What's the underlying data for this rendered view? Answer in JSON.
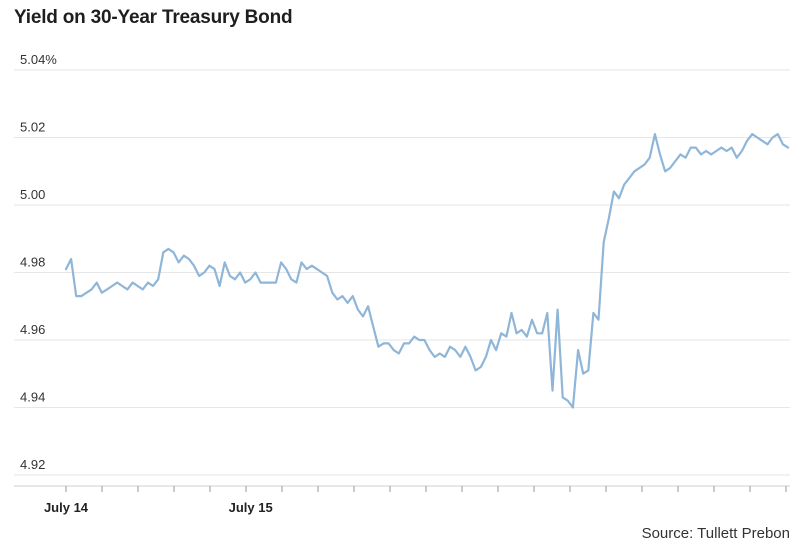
{
  "source": "Source: Tullett Prebon",
  "chart_data": {
    "type": "line",
    "title": "Yield on 30-Year Treasury Bond",
    "xlabel": "",
    "ylabel": "",
    "ylim": [
      4.92,
      5.04
    ],
    "yticks": [
      {
        "value": 5.04,
        "label": "5.04%"
      },
      {
        "value": 5.02,
        "label": "5.02"
      },
      {
        "value": 5.0,
        "label": "5.00"
      },
      {
        "value": 4.98,
        "label": "4.98"
      },
      {
        "value": 4.96,
        "label": "4.96"
      },
      {
        "value": 4.94,
        "label": "4.94"
      },
      {
        "value": 4.92,
        "label": "4.92"
      }
    ],
    "xlabels": [
      {
        "index": 0,
        "label": "July 14"
      },
      {
        "index": 6,
        "label": "July 15"
      }
    ],
    "xtick_count": 21,
    "grid": true,
    "line_color": "#8fb6d8",
    "series": [
      {
        "values": [
          4.981,
          4.984,
          4.973,
          4.973,
          4.974,
          4.975,
          4.977,
          4.974,
          4.975,
          4.976,
          4.977,
          4.976,
          4.975,
          4.977,
          4.976,
          4.975,
          4.977,
          4.976,
          4.978,
          4.986,
          4.987,
          4.986,
          4.983,
          4.985,
          4.984,
          4.982,
          4.979,
          4.98,
          4.982,
          4.981,
          4.976,
          4.983,
          4.979,
          4.978,
          4.98,
          4.977,
          4.978,
          4.98,
          4.977,
          4.977,
          4.977,
          4.977,
          4.983,
          4.981,
          4.978,
          4.977,
          4.983,
          4.981,
          4.982,
          4.981,
          4.98,
          4.979,
          4.974,
          4.972,
          4.973,
          4.971,
          4.973,
          4.969,
          4.967,
          4.97,
          4.964,
          4.958,
          4.959,
          4.959,
          4.957,
          4.956,
          4.959,
          4.959,
          4.961,
          4.96,
          4.96,
          4.957,
          4.955,
          4.956,
          4.955,
          4.958,
          4.957,
          4.955,
          4.958,
          4.955,
          4.951,
          4.952,
          4.955,
          4.96,
          4.957,
          4.962,
          4.961,
          4.968,
          4.962,
          4.963,
          4.961,
          4.966,
          4.962,
          4.962,
          4.968,
          4.945,
          4.969,
          4.943,
          4.942,
          4.94,
          4.957,
          4.95,
          4.951,
          4.968,
          4.966,
          4.989,
          4.996,
          5.004,
          5.002,
          5.006,
          5.008,
          5.01,
          5.011,
          5.012,
          5.014,
          5.021,
          5.015,
          5.01,
          5.011,
          5.013,
          5.015,
          5.014,
          5.017,
          5.017,
          5.015,
          5.016,
          5.015,
          5.016,
          5.017,
          5.016,
          5.017,
          5.014,
          5.016,
          5.019,
          5.021,
          5.02,
          5.019,
          5.018,
          5.02,
          5.021,
          5.018,
          5.017
        ]
      }
    ]
  }
}
